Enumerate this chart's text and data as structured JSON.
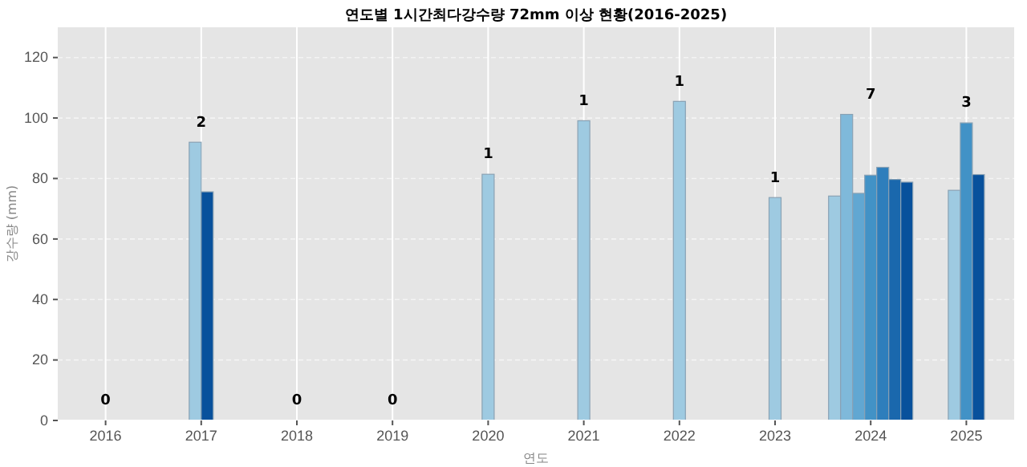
{
  "chart_data": {
    "type": "bar",
    "title": "연도별 1시간최다강수량 72mm 이상 현황(2016-2025)",
    "xlabel": "연도",
    "ylabel": "강수량 (mm)",
    "categories": [
      "2016",
      "2017",
      "2018",
      "2019",
      "2020",
      "2021",
      "2022",
      "2023",
      "2024",
      "2025"
    ],
    "series": [
      {
        "colors": [
          null,
          "#9ecae1",
          null,
          null,
          "#9ecae1",
          "#9ecae1",
          "#9ecae1",
          "#9ecae1",
          "#9ecae1",
          "#9ecae1"
        ],
        "values": [
          null,
          92,
          null,
          null,
          81.4,
          99.1,
          105.5,
          73.7,
          74.2,
          76.1
        ]
      },
      {
        "colors": [
          null,
          "#08519c",
          null,
          null,
          null,
          null,
          null,
          null,
          "#7fb9da",
          "#4292c6"
        ],
        "values": [
          null,
          75.6,
          null,
          null,
          null,
          null,
          null,
          null,
          101.2,
          98.4
        ]
      },
      {
        "colors": [
          null,
          null,
          null,
          null,
          null,
          null,
          null,
          null,
          "#61a7d2",
          "#08519c"
        ],
        "values": [
          null,
          null,
          null,
          null,
          null,
          null,
          null,
          null,
          75.1,
          81.3
        ]
      },
      {
        "colors": [
          null,
          null,
          null,
          null,
          null,
          null,
          null,
          null,
          "#4292c6",
          null
        ],
        "values": [
          null,
          null,
          null,
          null,
          null,
          null,
          null,
          null,
          81.1,
          null
        ]
      },
      {
        "colors": [
          null,
          null,
          null,
          null,
          null,
          null,
          null,
          null,
          "#2e7ebc",
          null
        ],
        "values": [
          null,
          null,
          null,
          null,
          null,
          null,
          null,
          null,
          83.7,
          null
        ]
      },
      {
        "colors": [
          null,
          null,
          null,
          null,
          null,
          null,
          null,
          null,
          "#1a68ad",
          null
        ],
        "values": [
          null,
          null,
          null,
          null,
          null,
          null,
          null,
          null,
          79.7,
          null
        ]
      },
      {
        "colors": [
          null,
          null,
          null,
          null,
          null,
          null,
          null,
          null,
          "#08519c",
          null
        ],
        "values": [
          null,
          null,
          null,
          null,
          null,
          null,
          null,
          null,
          78.8,
          null
        ]
      }
    ],
    "annotations": [
      "0",
      "2",
      "0",
      "0",
      "1",
      "1",
      "1",
      "1",
      "7",
      "3"
    ],
    "ylim": [
      0,
      130
    ],
    "yticks": [
      0,
      20,
      40,
      60,
      80,
      100,
      120
    ],
    "grid": true
  }
}
